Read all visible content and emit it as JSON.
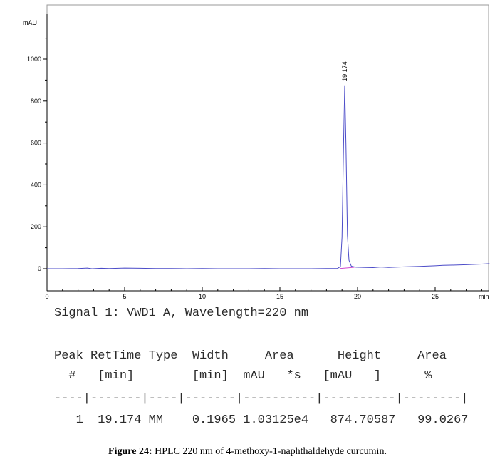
{
  "chart_data": {
    "type": "line",
    "ylabel_unit": "mAU",
    "xlabel_unit": "min",
    "xlim": [
      0,
      28.5
    ],
    "ylim": [
      -12,
      1200
    ],
    "x_ticks": [
      0,
      5,
      10,
      15,
      20,
      25
    ],
    "y_ticks": [
      0,
      200,
      400,
      600,
      800,
      1000
    ],
    "peak_annotation": "19.174",
    "peak": {
      "retention_time": 19.174,
      "height": 874.70587,
      "width": 0.1965
    },
    "series_color": "#4b4bc8",
    "baseline_color": "#d04ad0",
    "signal": [
      [
        0,
        0
      ],
      [
        1,
        0
      ],
      [
        2,
        1
      ],
      [
        2.6,
        3
      ],
      [
        2.9,
        0
      ],
      [
        3.5,
        2
      ],
      [
        4,
        1
      ],
      [
        5,
        3
      ],
      [
        6,
        2
      ],
      [
        7,
        1
      ],
      [
        8,
        1
      ],
      [
        9,
        0
      ],
      [
        10,
        1
      ],
      [
        11,
        0
      ],
      [
        12,
        0
      ],
      [
        13,
        0
      ],
      [
        14,
        1
      ],
      [
        15,
        0
      ],
      [
        16,
        0
      ],
      [
        17,
        0
      ],
      [
        18,
        1
      ],
      [
        18.7,
        1
      ],
      [
        18.9,
        10
      ],
      [
        19.0,
        150
      ],
      [
        19.1,
        600
      ],
      [
        19.174,
        874.7
      ],
      [
        19.25,
        600
      ],
      [
        19.35,
        160
      ],
      [
        19.45,
        40
      ],
      [
        19.6,
        12
      ],
      [
        19.9,
        7
      ],
      [
        20.5,
        6
      ],
      [
        21,
        5
      ],
      [
        21.5,
        8
      ],
      [
        22,
        6
      ],
      [
        23,
        9
      ],
      [
        24,
        11
      ],
      [
        25,
        14
      ],
      [
        25.5,
        16
      ],
      [
        26,
        17
      ],
      [
        27,
        19
      ],
      [
        28,
        22
      ],
      [
        28.5,
        24
      ]
    ]
  },
  "report": {
    "signal_title": "Signal 1: VWD1 A, Wavelength=220 nm",
    "header_line1": "Peak RetTime Type  Width     Area      Height     Area",
    "header_line2": "  #   [min]        [min]  mAU   *s   [mAU   ]      %",
    "separator": "----|-------|----|-------|----------|----------|--------|",
    "row": "   1  19.174 MM    0.1965 1.03125e4   874.70587   99.0267"
  },
  "caption": {
    "label": "Figure 24:",
    "text": " HPLC 220 nm of 4-methoxy-1-naphthaldehyde curcumin."
  }
}
